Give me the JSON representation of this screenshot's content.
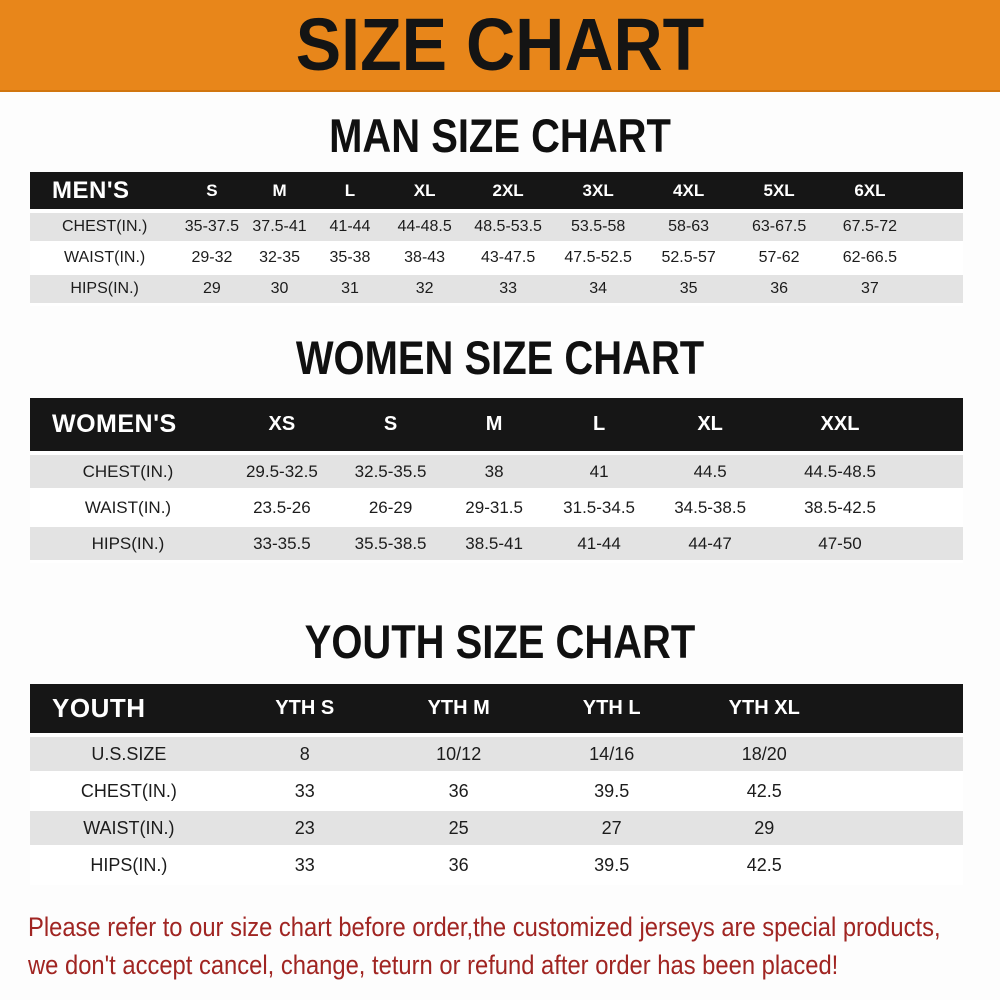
{
  "banner": {
    "title": "SIZE CHART"
  },
  "colors": {
    "banner_bg": "#E8861A",
    "banner_text": "#141414",
    "header_bg": "#161616",
    "header_text": "#FFFFFF",
    "stripe_gray": "#E3E3E3",
    "footer_red": "#A02522",
    "page_bg": "#FDFDFD"
  },
  "sections": [
    {
      "title": "MAN SIZE CHART",
      "table": {
        "header_label": "MEN'S",
        "columns": [
          "S",
          "M",
          "L",
          "XL",
          "2XL",
          "3XL",
          "4XL",
          "5XL",
          "6XL"
        ],
        "rows": [
          {
            "label": "CHEST(IN.)",
            "values": [
              "35-37.5",
              "37.5-41",
              "41-44",
              "44-48.5",
              "48.5-53.5",
              "53.5-58",
              "58-63",
              "63-67.5",
              "67.5-72"
            ]
          },
          {
            "label": "WAIST(IN.)",
            "values": [
              "29-32",
              "32-35",
              "35-38",
              "38-43",
              "43-47.5",
              "47.5-52.5",
              "52.5-57",
              "57-62",
              "62-66.5"
            ]
          },
          {
            "label": "HIPS(IN.)",
            "values": [
              "29",
              "30",
              "31",
              "32",
              "33",
              "34",
              "35",
              "36",
              "37"
            ]
          }
        ]
      }
    },
    {
      "title": "WOMEN SIZE CHART",
      "table": {
        "header_label": "WOMEN'S",
        "columns": [
          "XS",
          "S",
          "M",
          "L",
          "XL",
          "XXL"
        ],
        "rows": [
          {
            "label": "CHEST(IN.)",
            "values": [
              "29.5-32.5",
              "32.5-35.5",
              "38",
              "41",
              "44.5",
              "44.5-48.5"
            ]
          },
          {
            "label": "WAIST(IN.)",
            "values": [
              "23.5-26",
              "26-29",
              "29-31.5",
              "31.5-34.5",
              "34.5-38.5",
              "38.5-42.5"
            ]
          },
          {
            "label": "HIPS(IN.)",
            "values": [
              "33-35.5",
              "35.5-38.5",
              "38.5-41",
              "41-44",
              "44-47",
              "47-50"
            ]
          }
        ]
      }
    },
    {
      "title": "YOUTH SIZE CHART",
      "table": {
        "header_label": "YOUTH",
        "columns": [
          "YTH S",
          "YTH M",
          "YTH L",
          "YTH XL"
        ],
        "rows": [
          {
            "label": "U.S.SIZE",
            "values": [
              "8",
              "10/12",
              "14/16",
              "18/20"
            ]
          },
          {
            "label": "CHEST(IN.)",
            "values": [
              "33",
              "36",
              "39.5",
              "42.5"
            ]
          },
          {
            "label": "WAIST(IN.)",
            "values": [
              "23",
              "25",
              "27",
              "29"
            ]
          },
          {
            "label": "HIPS(IN.)",
            "values": [
              "33",
              "36",
              "39.5",
              "42.5"
            ]
          }
        ]
      }
    }
  ],
  "footer": {
    "line1": "Please refer to our size chart before order,the customized jerseys are special products,",
    "line2": "we don't accept cancel, change, teturn or refund after order has been placed!"
  }
}
